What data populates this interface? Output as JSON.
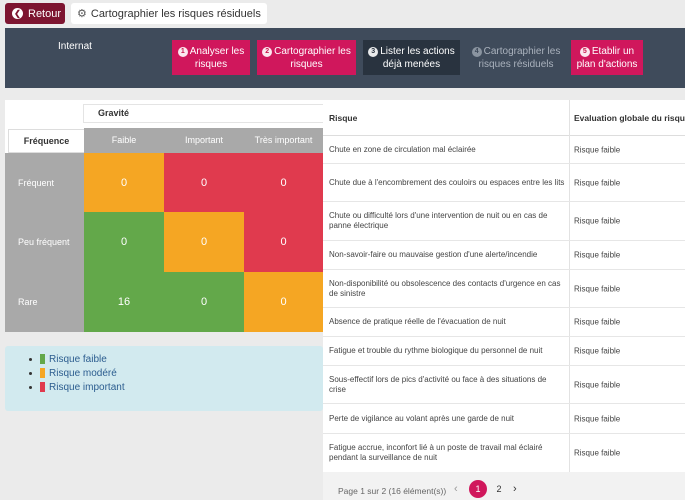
{
  "topbar": {
    "back_label": "Retour",
    "breadcrumb_title": "Cartographier les risques résiduels"
  },
  "band": {
    "title": "Internat",
    "steps": [
      {
        "num": "1",
        "label": "Analyser les risques",
        "state": "pink"
      },
      {
        "num": "2",
        "label": "Cartographier les risques",
        "state": "pink"
      },
      {
        "num": "3",
        "label": "Lister les actions déjà menées",
        "state": "dark"
      },
      {
        "num": "4",
        "label": "Cartographier les risques résiduels",
        "state": "muted"
      },
      {
        "num": "5",
        "label": "Etablir un plan d'actions",
        "state": "pink"
      }
    ]
  },
  "matrix": {
    "gravite_label": "Gravité",
    "frequence_label": "Fréquence",
    "columns": [
      "Faible",
      "Important",
      "Très important"
    ],
    "rows": [
      {
        "label": "Fréquent",
        "values": [
          "0",
          "0",
          "0"
        ],
        "colors": [
          "orange",
          "red",
          "red"
        ]
      },
      {
        "label": "Peu fréquent",
        "values": [
          "0",
          "0",
          "0"
        ],
        "colors": [
          "green",
          "orange",
          "red"
        ]
      },
      {
        "label": "Rare",
        "values": [
          "16",
          "0",
          "0"
        ],
        "colors": [
          "green",
          "green",
          "orange"
        ]
      }
    ]
  },
  "legend": {
    "items": [
      {
        "label": "Risque faible",
        "color": "#63a84a"
      },
      {
        "label": "Risque modéré",
        "color": "#f5a623"
      },
      {
        "label": "Risque important",
        "color": "#e03a4e"
      }
    ]
  },
  "table": {
    "headers": [
      "Risque",
      "Evaluation globale du risque"
    ],
    "rows": [
      {
        "risque": "Chute en zone de circulation mal éclairée",
        "evaluation": "Risque faible"
      },
      {
        "risque": "Chute due à l'encombrement des couloirs ou espaces entre les lits",
        "evaluation": "Risque faible"
      },
      {
        "risque": "Chute ou difficulté lors d'une intervention de nuit ou en cas de panne électrique",
        "evaluation": "Risque faible"
      },
      {
        "risque": "Non-savoir-faire ou mauvaise gestion d'une alerte/incendie",
        "evaluation": "Risque faible"
      },
      {
        "risque": "Non-disponibilité ou obsolescence des contacts d'urgence en cas de sinistre",
        "evaluation": "Risque faible"
      },
      {
        "risque": "Absence de pratique réelle de l'évacuation de nuit",
        "evaluation": "Risque faible"
      },
      {
        "risque": "Fatigue et trouble du rythme biologique du personnel de nuit",
        "evaluation": "Risque faible"
      },
      {
        "risque": "Sous-effectif lors de pics d'activité ou face à des situations de crise",
        "evaluation": "Risque faible"
      },
      {
        "risque": "Perte de vigilance au volant après une garde de nuit",
        "evaluation": "Risque faible"
      },
      {
        "risque": "Fatigue accrue, inconfort lié à un poste de travail mal éclairé pendant la surveillance de nuit",
        "evaluation": "Risque faible"
      }
    ],
    "pager": {
      "info": "Page 1 sur 2 (16 élément(s))",
      "pages": [
        "1",
        "2"
      ],
      "current": "1"
    }
  }
}
